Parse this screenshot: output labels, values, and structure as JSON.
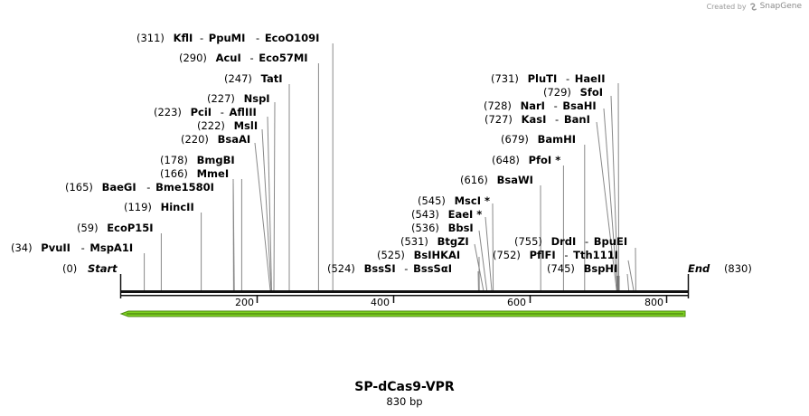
{
  "watermark": {
    "prefix": "Created by",
    "brand": "SnapGene",
    "icon": "snapgene-logo-icon"
  },
  "map": {
    "name": "SP-dCas9-VPR",
    "length_label": "830 bp",
    "start_label": "Start",
    "start_pos": "(0)",
    "end_label": "End",
    "end_pos": "(830)",
    "feature": {
      "name": "green-arrow-feature",
      "color": "#7ed321",
      "direction": "reverse"
    },
    "ticks": [
      "200",
      "400",
      "600",
      "800"
    ]
  },
  "sites": [
    {
      "pos": "(311)",
      "names": [
        "KflI",
        "PpuMI",
        "EcoO109I"
      ]
    },
    {
      "pos": "(290)",
      "names": [
        "AcuI",
        "Eco57MI"
      ]
    },
    {
      "pos": "(247)",
      "names": [
        "TatI"
      ]
    },
    {
      "pos": "(227)",
      "names": [
        "NspI"
      ]
    },
    {
      "pos": "(223)",
      "names": [
        "PciI",
        "AflIII"
      ]
    },
    {
      "pos": "(222)",
      "names": [
        "MslI"
      ]
    },
    {
      "pos": "(220)",
      "names": [
        "BsaAI"
      ]
    },
    {
      "pos": "(178)",
      "names": [
        "BmgBI"
      ]
    },
    {
      "pos": "(166)",
      "names": [
        "MmeI"
      ]
    },
    {
      "pos": "(165)",
      "names": [
        "BaeGI",
        "Bme1580I"
      ]
    },
    {
      "pos": "(119)",
      "names": [
        "HincII"
      ]
    },
    {
      "pos": "(59)",
      "names": [
        "EcoP15I"
      ]
    },
    {
      "pos": "(34)",
      "names": [
        "PvuII",
        "MspA1I"
      ]
    },
    {
      "pos": "(731)",
      "names": [
        "PluTI",
        "HaeII"
      ]
    },
    {
      "pos": "(729)",
      "names": [
        "SfoI"
      ]
    },
    {
      "pos": "(728)",
      "names": [
        "NarI",
        "BsaHI"
      ]
    },
    {
      "pos": "(727)",
      "names": [
        "KasI",
        "BanI"
      ]
    },
    {
      "pos": "(679)",
      "names": [
        "BamHI"
      ]
    },
    {
      "pos": "(648)",
      "names": [
        "PfoI *"
      ]
    },
    {
      "pos": "(616)",
      "names": [
        "BsaWI"
      ]
    },
    {
      "pos": "(545)",
      "names": [
        "MscI *"
      ]
    },
    {
      "pos": "(543)",
      "names": [
        "EaeI *"
      ]
    },
    {
      "pos": "(536)",
      "names": [
        "BbsI"
      ]
    },
    {
      "pos": "(531)",
      "names": [
        "BtgZI"
      ]
    },
    {
      "pos": "(525)",
      "names": [
        "BsIHKAI"
      ]
    },
    {
      "pos": "(524)",
      "names": [
        "BssSI",
        "BssSαI"
      ]
    },
    {
      "pos": "(755)",
      "names": [
        "DrdI",
        "BpuEI"
      ]
    },
    {
      "pos": "(752)",
      "names": [
        "PflFI",
        "Tth111I"
      ]
    },
    {
      "pos": "(745)",
      "names": [
        "BspHI"
      ]
    }
  ]
}
